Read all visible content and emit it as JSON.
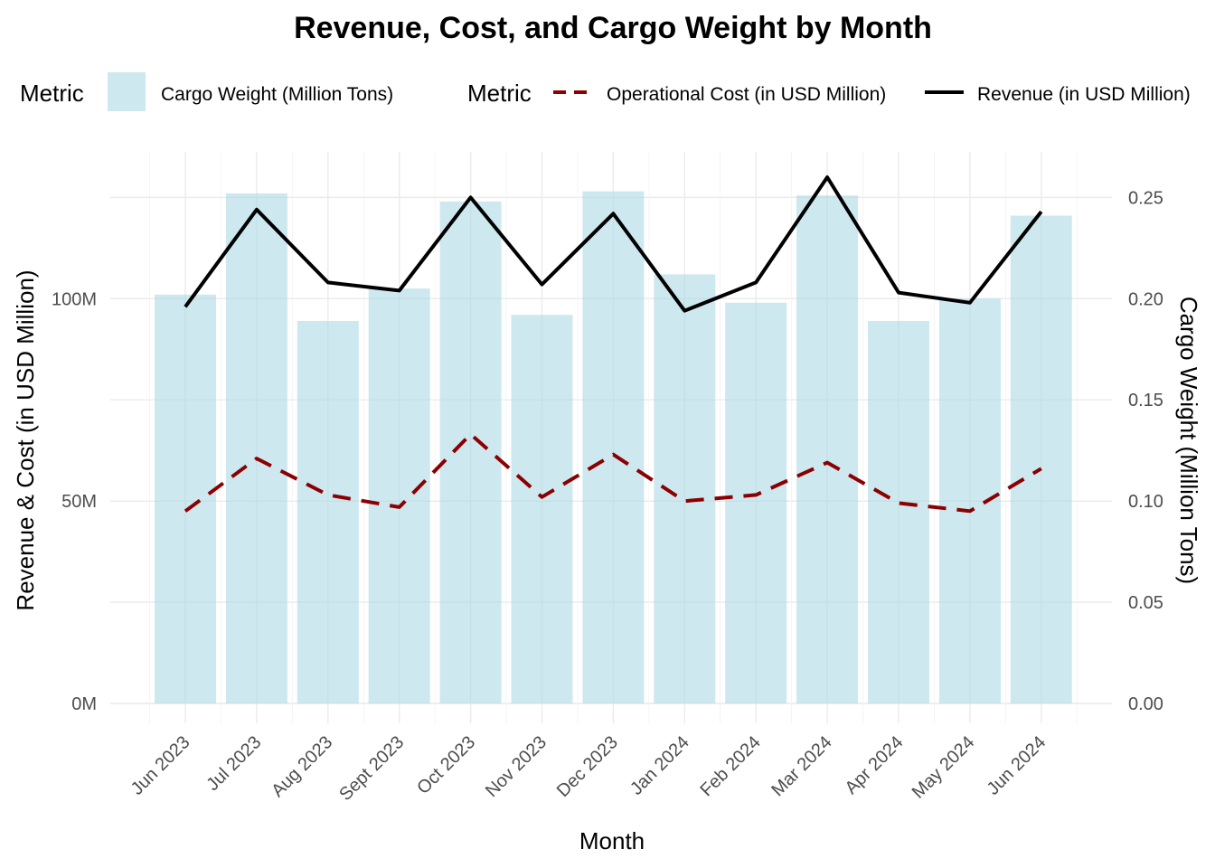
{
  "chart_data": {
    "type": "bar",
    "title": "Revenue, Cost, and Cargo Weight by Month",
    "xlabel": "Month",
    "ylabel": "Revenue & Cost (in USD Million)",
    "y2label": "Cargo Weight (Million Tons)",
    "ylim": [
      0,
      130
    ],
    "y2lim": [
      0,
      0.26
    ],
    "yticks": [
      {
        "value": 0,
        "label": "0M"
      },
      {
        "value": 50,
        "label": "50M"
      },
      {
        "value": 100,
        "label": "100M"
      }
    ],
    "y2ticks": [
      {
        "value": 0.0,
        "label": "0.00"
      },
      {
        "value": 0.05,
        "label": "0.05"
      },
      {
        "value": 0.1,
        "label": "0.10"
      },
      {
        "value": 0.15,
        "label": "0.15"
      },
      {
        "value": 0.2,
        "label": "0.20"
      },
      {
        "value": 0.25,
        "label": "0.25"
      }
    ],
    "categories": [
      "Jun 2023",
      "Jul 2023",
      "Aug 2023",
      "Sept 2023",
      "Oct 2023",
      "Nov 2023",
      "Dec 2023",
      "Jan 2024",
      "Feb 2024",
      "Mar 2024",
      "Apr 2024",
      "May 2024",
      "Jun 2024"
    ],
    "grid": true,
    "legend_position": "top",
    "legend": {
      "fill_title": "Metric",
      "line_title": "Metric"
    },
    "series": [
      {
        "name": "Cargo Weight (Million Tons)",
        "kind": "bar",
        "axis": "right",
        "color": "#add8e6",
        "values": [
          0.202,
          0.252,
          0.189,
          0.205,
          0.248,
          0.192,
          0.253,
          0.212,
          0.198,
          0.251,
          0.189,
          0.2,
          0.241
        ]
      },
      {
        "name": "Operational Cost (in USD Million)",
        "kind": "line",
        "style": "dashed",
        "axis": "left",
        "color": "#8b0000",
        "values": [
          47.5,
          60.5,
          51.5,
          48.5,
          66.5,
          51,
          61.5,
          50,
          51.5,
          59.5,
          49.5,
          47.5,
          58
        ]
      },
      {
        "name": "Revenue (in USD Million)",
        "kind": "line",
        "style": "solid",
        "axis": "left",
        "color": "#000000",
        "values": [
          98,
          122,
          104,
          102,
          125,
          103.5,
          121,
          97,
          104,
          130,
          101.5,
          99,
          121.5
        ]
      }
    ]
  }
}
